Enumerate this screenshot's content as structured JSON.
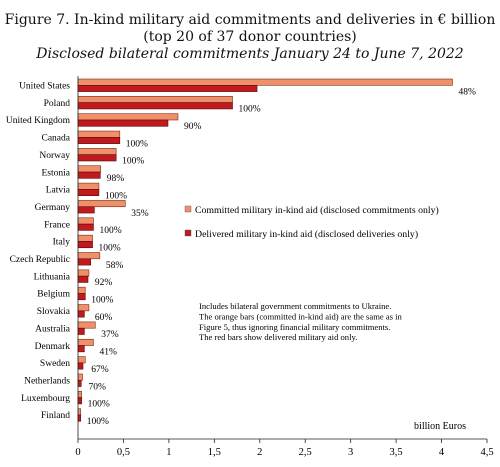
{
  "header": {
    "title_line1": "Figure 7. In-kind military aid commitments and deliveries in € billion",
    "title_line2": "(top 20 of 37 donor countries)",
    "subtitle": "Disclosed bilateral commitments January 24 to June 7, 2022"
  },
  "chart_data": {
    "type": "bar",
    "orientation": "horizontal",
    "title": "Figure 7. In-kind military aid commitments and deliveries in € billion",
    "subtitle": "Disclosed bilateral commitments January 24 to June 7, 2022",
    "xlabel": "billion Euros",
    "xlim": [
      0,
      4.5
    ],
    "xticks": [
      "0",
      "0,5",
      "1",
      "1,5",
      "2",
      "2,5",
      "3",
      "3,5",
      "4",
      "4,5"
    ],
    "grid": false,
    "legend_position": "right",
    "categories": [
      "United States",
      "Poland",
      "United Kingdom",
      "Canada",
      "Norway",
      "Estonia",
      "Latvia",
      "Germany",
      "France",
      "Italy",
      "Czech Republic",
      "Lithuania",
      "Belgium",
      "Slovakia",
      "Australia",
      "Denmark",
      "Sweden",
      "Netherlands",
      "Luxembourg",
      "Finland"
    ],
    "series": [
      {
        "name": "Committed military in-kind aid (disclosed commitments only)",
        "color": "#f0906b",
        "values": [
          4.12,
          1.7,
          1.1,
          0.46,
          0.42,
          0.25,
          0.23,
          0.52,
          0.17,
          0.16,
          0.24,
          0.12,
          0.08,
          0.12,
          0.19,
          0.17,
          0.08,
          0.05,
          0.04,
          0.03
        ]
      },
      {
        "name": "Delivered military in-kind aid (disclosed deliveries only)",
        "color": "#c0191e",
        "values": [
          1.97,
          1.7,
          0.99,
          0.46,
          0.42,
          0.245,
          0.23,
          0.18,
          0.17,
          0.16,
          0.14,
          0.11,
          0.08,
          0.07,
          0.07,
          0.07,
          0.055,
          0.035,
          0.04,
          0.03
        ]
      }
    ],
    "data_labels": [
      "48%",
      "100%",
      "90%",
      "100%",
      "100%",
      "98%",
      "100%",
      "35%",
      "100%",
      "100%",
      "58%",
      "92%",
      "100%",
      "60%",
      "37%",
      "41%",
      "67%",
      "70%",
      "100%",
      "100%"
    ],
    "annotation": [
      "Includes bilateral government commitments to Ukraine.",
      "The orange bars (committed in-kind aid) are the same as in",
      "Figure 5, thus ignoring financial military commitments.",
      "The red bars show delivered military aid only."
    ]
  }
}
